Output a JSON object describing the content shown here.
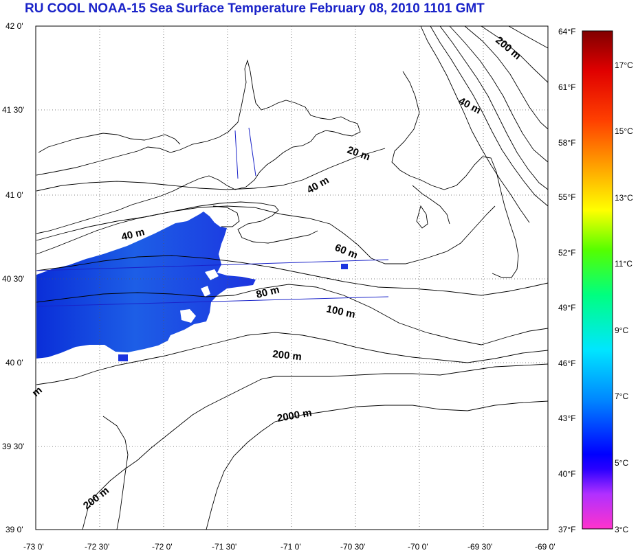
{
  "title": "RU COOL  NOAA-15 Sea Surface Temperature February 08, 2010 1101 GMT",
  "map": {
    "lat_labels": [
      "42 0'",
      "41 30'",
      "41 0'",
      "40 30'",
      "40 0'",
      "39 30'",
      "39 0'"
    ],
    "lon_labels": [
      "-73 0'",
      "-72 30'",
      "-72 0'",
      "-71 30'",
      "-71 0'",
      "-70 30'",
      "-70 0'",
      "-69 30'",
      "-69 0'"
    ],
    "depth_labels": [
      "200 m",
      "40 m",
      "20 m",
      "40 m",
      "40 m",
      "60 m",
      "80 m",
      "100 m",
      "200 m",
      "2000 m",
      "200 m",
      "m"
    ],
    "lat_range": [
      39.0,
      42.0
    ],
    "lon_range": [
      -73.0,
      -69.0
    ],
    "grid": true
  },
  "colorbar": {
    "fahrenheit_labels": [
      "64°F",
      "61°F",
      "58°F",
      "55°F",
      "52°F",
      "49°F",
      "46°F",
      "43°F",
      "40°F",
      "37°F"
    ],
    "celsius_labels": [
      "17°C",
      "15°C",
      "13°C",
      "11°C",
      "9°C",
      "7°C",
      "5°C",
      "3°C"
    ],
    "colors": [
      "#800000",
      "#ff0000",
      "#ff8000",
      "#ffff00",
      "#00ff00",
      "#00ffff",
      "#0000ff",
      "#ff00c8"
    ]
  }
}
